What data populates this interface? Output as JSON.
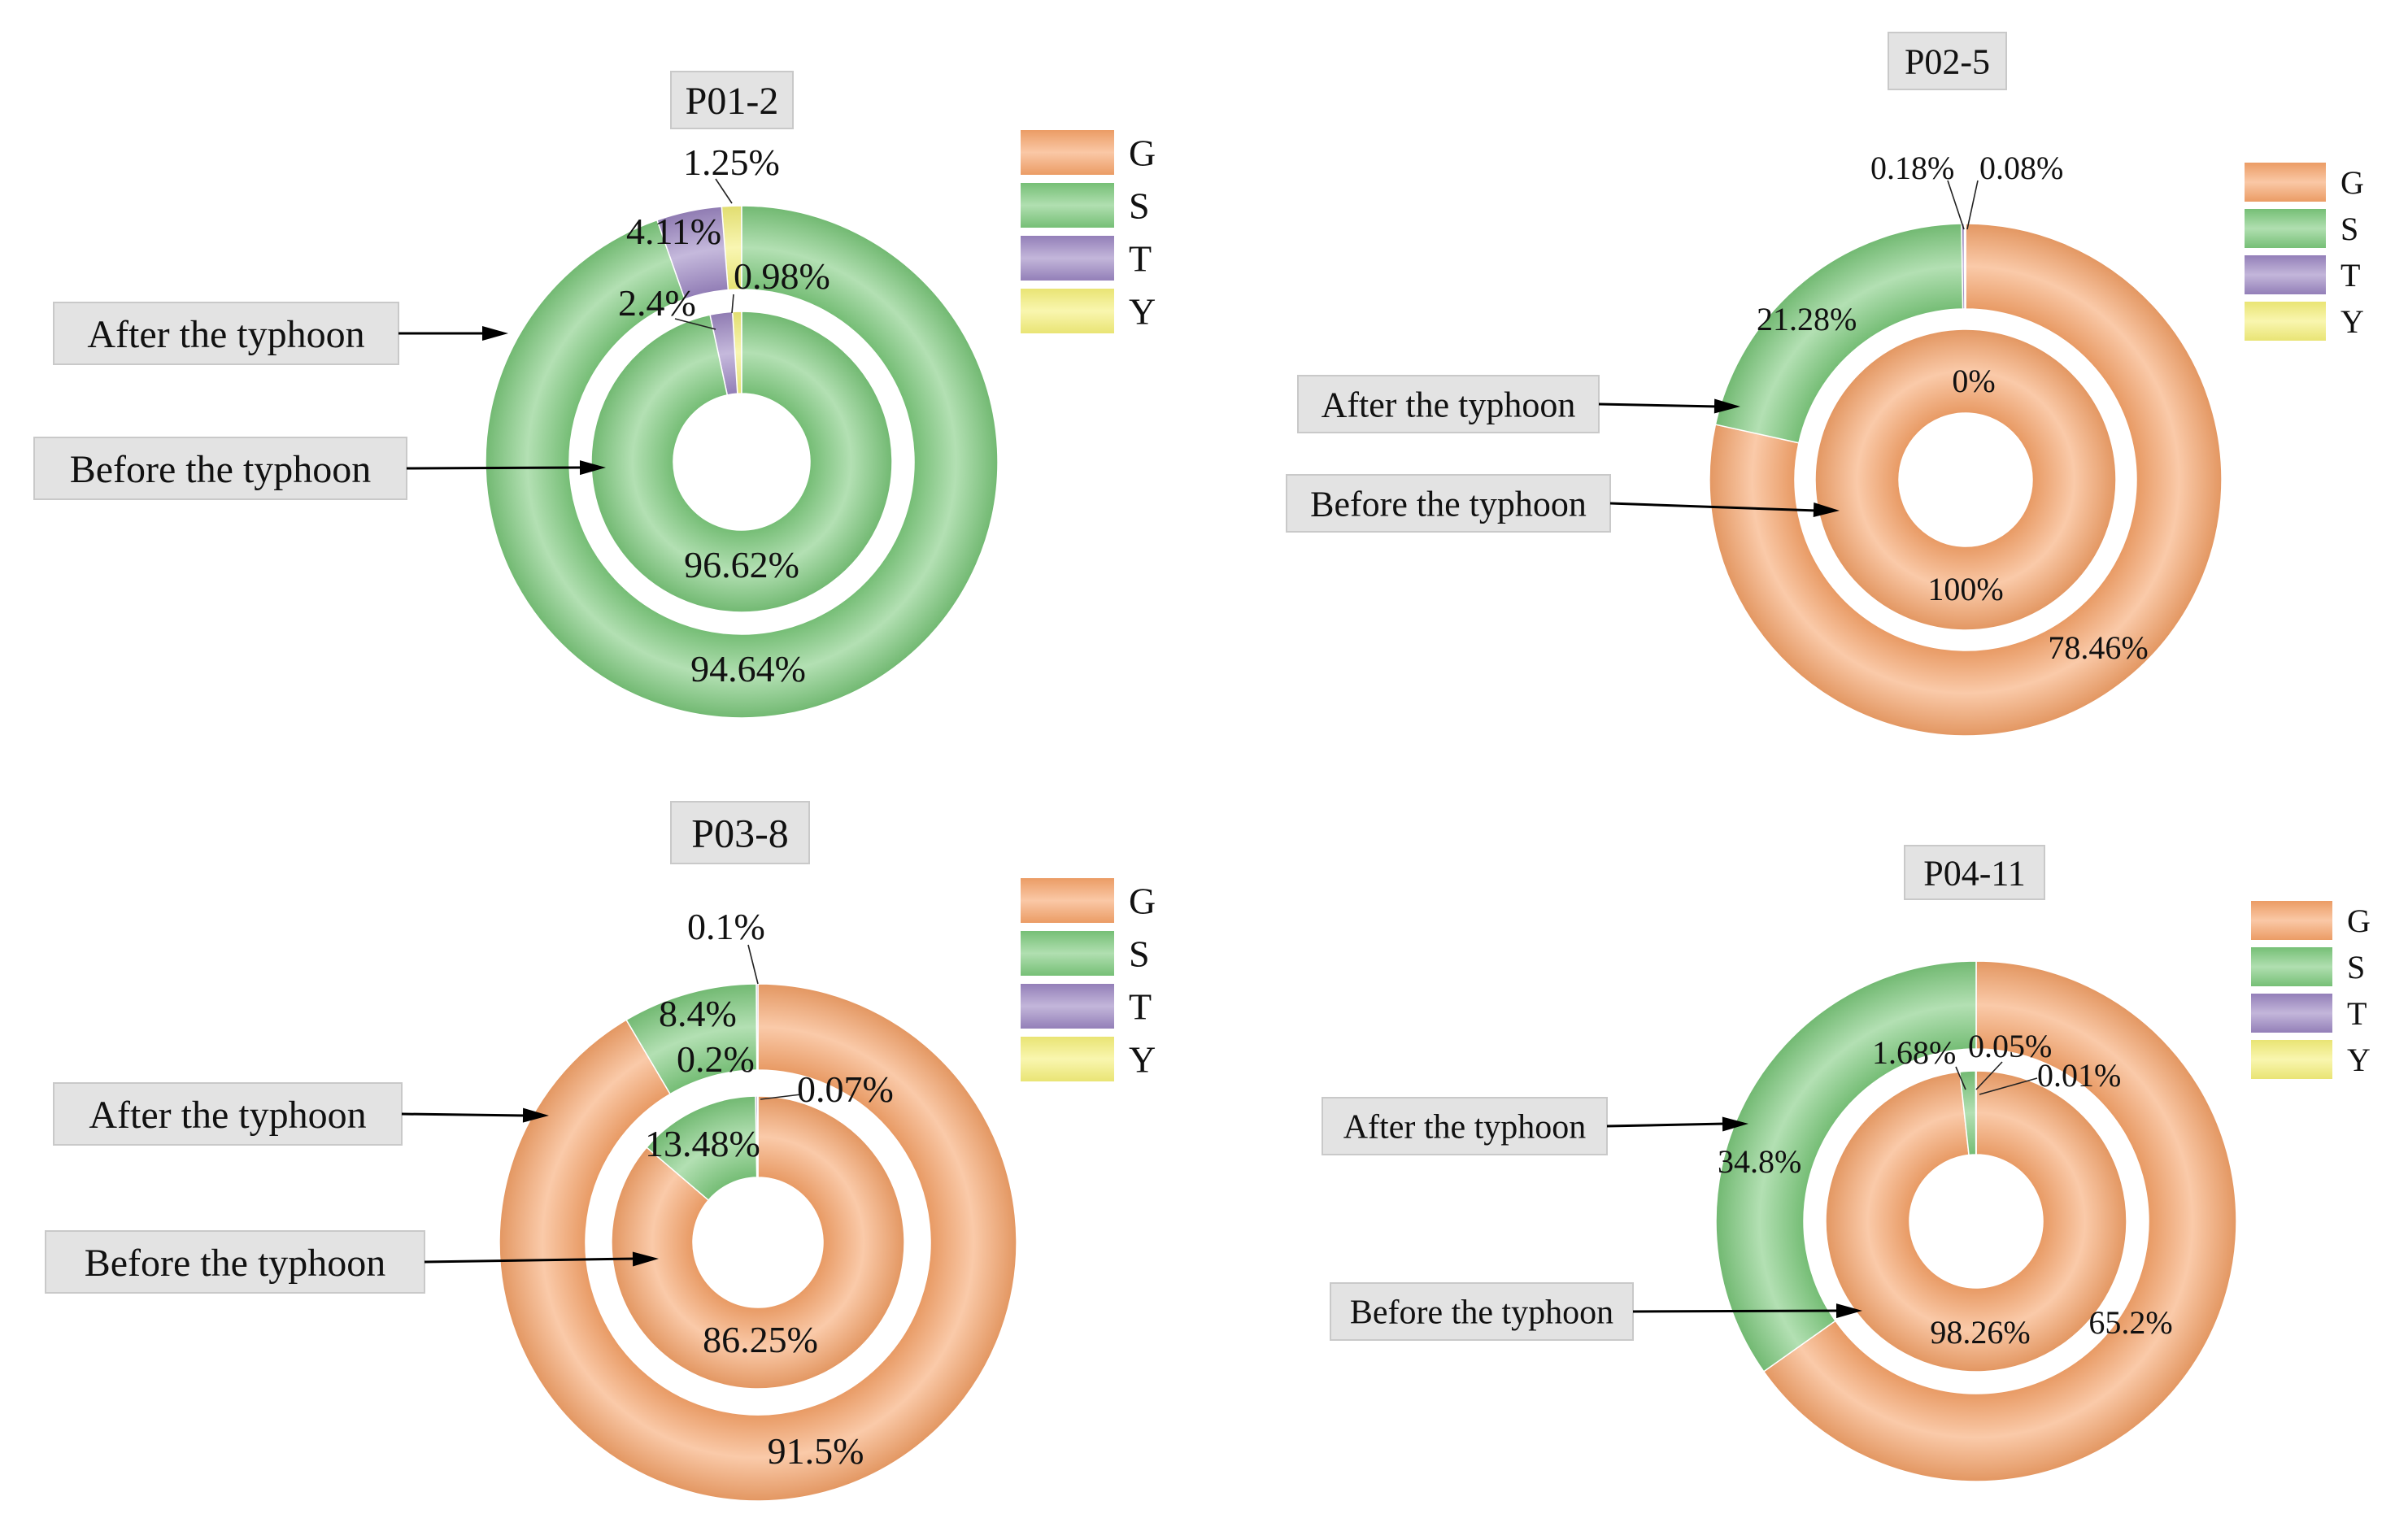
{
  "categories": [
    "G",
    "S",
    "T",
    "Y"
  ],
  "colors": {
    "G": "#f7a46a",
    "S": "#7cc97c",
    "T": "#9b86c2",
    "Y": "#f5f07a"
  },
  "annotations": {
    "after": "After the typhoon",
    "before": "Before the typhoon"
  },
  "chart_data": [
    {
      "type": "pie",
      "title": "P01-2",
      "outer_ring": {
        "name": "After the typhoon",
        "values": {
          "G": 0,
          "S": 94.64,
          "T": 4.11,
          "Y": 1.25
        }
      },
      "inner_ring": {
        "name": "Before the typhoon",
        "values": {
          "G": 0,
          "S": 96.62,
          "T": 2.4,
          "Y": 0.98
        }
      },
      "labels": {
        "outer": [
          "94.64%",
          "4.11%",
          "1.25%"
        ],
        "inner": [
          "96.62%",
          "2.4%",
          "0.98%"
        ]
      },
      "legend": [
        "G",
        "S",
        "T",
        "Y"
      ]
    },
    {
      "type": "pie",
      "title": "P02-5",
      "outer_ring": {
        "name": "After the typhoon",
        "values": {
          "G": 78.46,
          "S": 21.28,
          "T": 0.18,
          "Y": 0.08
        }
      },
      "inner_ring": {
        "name": "Before the typhoon",
        "values": {
          "G": 100,
          "S": 0,
          "T": 0,
          "Y": 0
        }
      },
      "labels": {
        "outer": [
          "78.46%",
          "21.28%",
          "0.18%",
          "0.08%"
        ],
        "inner": [
          "100%",
          "0%"
        ]
      },
      "legend": [
        "G",
        "S",
        "T",
        "Y"
      ]
    },
    {
      "type": "pie",
      "title": "P03-8",
      "outer_ring": {
        "name": "After the typhoon",
        "values": {
          "G": 91.5,
          "S": 8.4,
          "T": 0.1,
          "Y": 0
        }
      },
      "inner_ring": {
        "name": "Before the typhoon",
        "values": {
          "G": 86.25,
          "S": 13.48,
          "T": 0.2,
          "Y": 0.07
        }
      },
      "labels": {
        "outer": [
          "91.5%",
          "8.4%",
          "0.1%"
        ],
        "inner": [
          "86.25%",
          "13.48%",
          "0.2%",
          "0.07%"
        ]
      },
      "legend": [
        "G",
        "S",
        "T",
        "Y"
      ]
    },
    {
      "type": "pie",
      "title": "P04-11",
      "outer_ring": {
        "name": "After the typhoon",
        "values": {
          "G": 65.2,
          "S": 34.8,
          "T": 0,
          "Y": 0
        }
      },
      "inner_ring": {
        "name": "Before the typhoon",
        "values": {
          "G": 98.26,
          "S": 1.68,
          "T": 0.05,
          "Y": 0.01
        }
      },
      "labels": {
        "outer": [
          "65.2%",
          "34.8%"
        ],
        "inner": [
          "98.26%",
          "1.68%",
          "0.05%",
          "0.01%"
        ]
      },
      "legend": [
        "G",
        "S",
        "T",
        "Y"
      ]
    }
  ]
}
